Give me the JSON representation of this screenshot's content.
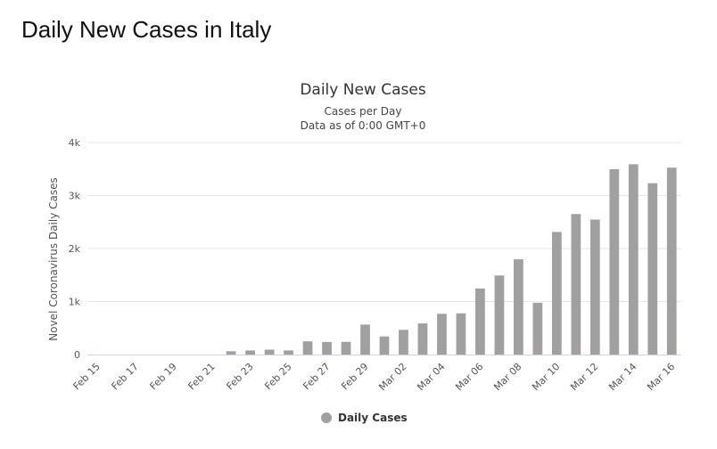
{
  "page": {
    "heading": "Daily New Cases in Italy"
  },
  "colors": {
    "bar": "#a0a0a0",
    "grid": "#e6e6e6",
    "axis": "#ccd6eb"
  },
  "chart_data": {
    "type": "bar",
    "title": "Daily New Cases",
    "subtitle_lines": [
      "Cases per Day",
      "Data as of 0:00 GMT+0"
    ],
    "xlabel": "",
    "ylabel": "Novel Coronavirus Daily Cases",
    "ylim": [
      0,
      4000
    ],
    "yticks": [
      0,
      1000,
      2000,
      3000,
      4000
    ],
    "ytick_labels": [
      "0",
      "1k",
      "2k",
      "3k",
      "4k"
    ],
    "grid": true,
    "legend_position": "bottom-center",
    "series": [
      {
        "name": "Daily Cases",
        "color": "#a0a0a0",
        "values": [
          0,
          0,
          0,
          0,
          0,
          0,
          0,
          62,
          77,
          93,
          78,
          250,
          238,
          240,
          566,
          342,
          466,
          587,
          769,
          778,
          1247,
          1492,
          1797,
          977,
          2313,
          2651,
          2547,
          3497,
          3590,
          3233,
          3526
        ]
      }
    ],
    "categories": [
      "Feb 15",
      "Feb 16",
      "Feb 17",
      "Feb 18",
      "Feb 19",
      "Feb 20",
      "Feb 21",
      "Feb 22",
      "Feb 23",
      "Feb 24",
      "Feb 25",
      "Feb 26",
      "Feb 27",
      "Feb 28",
      "Feb 29",
      "Mar 01",
      "Mar 02",
      "Mar 03",
      "Mar 04",
      "Mar 05",
      "Mar 06",
      "Mar 07",
      "Mar 08",
      "Mar 09",
      "Mar 10",
      "Mar 11",
      "Mar 12",
      "Mar 13",
      "Mar 14",
      "Mar 15",
      "Mar 16"
    ],
    "xtick_labels": [
      "Feb 15",
      "Feb 17",
      "Feb 19",
      "Feb 21",
      "Feb 23",
      "Feb 25",
      "Feb 27",
      "Feb 29",
      "Mar 02",
      "Mar 04",
      "Mar 06",
      "Mar 08",
      "Mar 10",
      "Mar 12",
      "Mar 14",
      "Mar 16"
    ]
  }
}
